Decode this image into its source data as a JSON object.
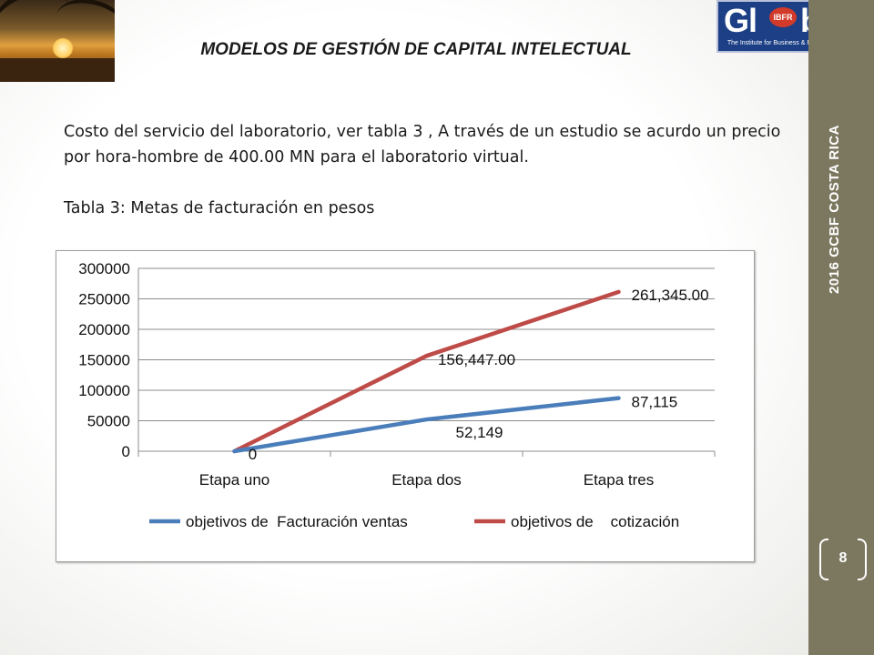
{
  "header": {
    "title": "MODELOS DE GESTIÓN DE CAPITAL INTELECTUAL",
    "logo_main": "Gl",
    "logo_main2": "bal",
    "logo_badge": "IBFR",
    "logo_tagline": "The Institute for Business & Finance Research"
  },
  "sidebar": {
    "vertical_title": "2016   GCBF  COSTA RICA",
    "page_number": "8"
  },
  "body": {
    "paragraph": "Costo del servicio del laboratorio, ver tabla 3 , A través  de un estudio se acurdo  un precio por hora-hombre de 400.00 MN para el laboratorio virtual.",
    "caption": "Tabla 3:  Metas de facturación en pesos"
  },
  "colors": {
    "series_blue": "#4a7ebb",
    "series_red": "#be4b48",
    "sidebar": "#7c7860"
  },
  "chart_data": {
    "type": "line",
    "categories": [
      "Etapa uno",
      "Etapa dos",
      "Etapa tres"
    ],
    "ylim": [
      0,
      300000
    ],
    "yticks": [
      "0",
      "50000",
      "100000",
      "150000",
      "200000",
      "250000",
      "300000"
    ],
    "grid": true,
    "legend_position": "bottom",
    "series": [
      {
        "name": "objetivos de  Facturación ventas",
        "values": [
          0,
          52149,
          87115
        ],
        "labels": [
          "0",
          "52,149",
          "87,115"
        ],
        "color": "#4a7ebb"
      },
      {
        "name": "objetivos de    cotización",
        "values": [
          0,
          156447,
          261345
        ],
        "labels": [
          "",
          "156,447.00",
          "261,345.00"
        ],
        "color": "#be4b48"
      }
    ]
  }
}
